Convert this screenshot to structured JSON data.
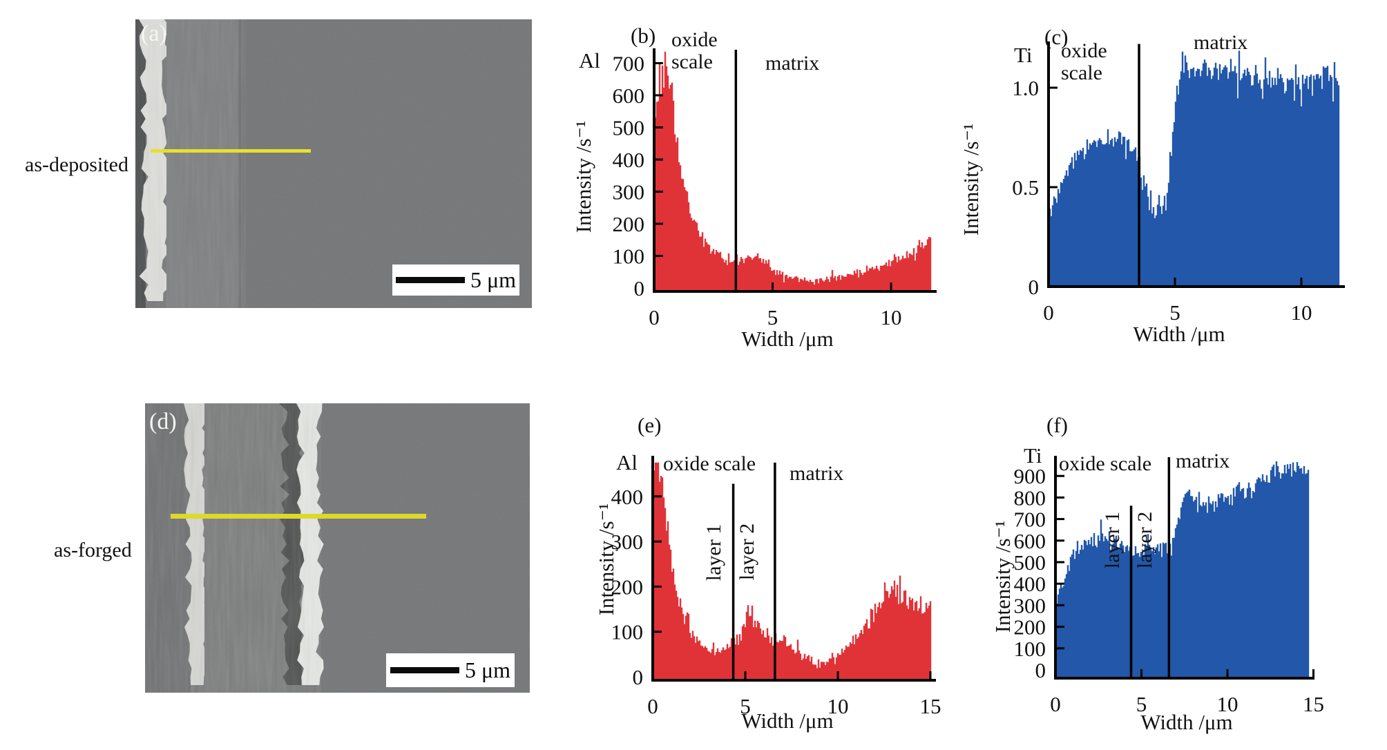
{
  "rows": [
    {
      "label": "as-deposited"
    },
    {
      "label": "as-forged"
    }
  ],
  "sem_panels": [
    {
      "panel_label": "(a)",
      "scale_label": "5 μm"
    },
    {
      "panel_label": "(d)",
      "scale_label": "5 μm"
    }
  ],
  "chart_data": [
    {
      "id": "b",
      "type": "area",
      "panel_label": "(b)",
      "element": "Al",
      "xlabel": "Width /μm",
      "ylabel": "Intensity /s⁻¹",
      "x_ticks": [
        0,
        5,
        10
      ],
      "x_tick_labels": [
        "0",
        "5",
        "10"
      ],
      "y_ticks": [
        0,
        100,
        200,
        300,
        400,
        500,
        600,
        700
      ],
      "y_tick_labels": [
        "0",
        "100",
        "200",
        "300",
        "400",
        "500",
        "600",
        "700"
      ],
      "xlim": [
        0,
        11.7
      ],
      "ylim": [
        0,
        745
      ],
      "grid": false,
      "fill_color": "#e03338",
      "region_labels": {
        "oxide": "oxide\nscale",
        "matrix": "matrix"
      },
      "boundaries": [
        {
          "x": 3.45,
          "top": 745
        }
      ],
      "noise": {
        "abs": 10,
        "rel": 0.12,
        "spike": 0.05,
        "dip": 0.04,
        "seed": 5
      },
      "profile": [
        [
          0,
          480
        ],
        [
          0.2,
          620
        ],
        [
          0.35,
          690
        ],
        [
          0.5,
          705
        ],
        [
          0.65,
          640
        ],
        [
          0.8,
          545
        ],
        [
          0.95,
          460
        ],
        [
          1.1,
          385
        ],
        [
          1.3,
          300
        ],
        [
          1.5,
          245
        ],
        [
          1.75,
          200
        ],
        [
          2.0,
          160
        ],
        [
          2.3,
          130
        ],
        [
          2.6,
          110
        ],
        [
          3.0,
          92
        ],
        [
          3.4,
          82
        ],
        [
          3.7,
          88
        ],
        [
          4.0,
          97
        ],
        [
          4.3,
          100
        ],
        [
          4.6,
          92
        ],
        [
          4.9,
          75
        ],
        [
          5.1,
          52
        ],
        [
          5.4,
          38
        ],
        [
          5.8,
          30
        ],
        [
          6.2,
          24
        ],
        [
          6.7,
          22
        ],
        [
          7.2,
          26
        ],
        [
          7.7,
          32
        ],
        [
          8.2,
          40
        ],
        [
          8.7,
          48
        ],
        [
          9.2,
          58
        ],
        [
          9.7,
          70
        ],
        [
          10.2,
          85
        ],
        [
          10.6,
          100
        ],
        [
          11.0,
          118
        ],
        [
          11.3,
          138
        ],
        [
          11.5,
          150
        ],
        [
          11.7,
          158
        ]
      ]
    },
    {
      "id": "c",
      "type": "area",
      "panel_label": "(c)",
      "element": "Ti",
      "xlabel": "Width /μm",
      "ylabel": "Intensity /s⁻¹",
      "x_ticks": [
        0,
        5,
        10
      ],
      "x_tick_labels": [
        "0",
        "5",
        "10"
      ],
      "y_ticks": [
        0,
        0.5,
        1.0
      ],
      "y_tick_labels": [
        "0",
        "0.5",
        "1.0"
      ],
      "xlim": [
        0,
        11.5
      ],
      "ylim": [
        0,
        1.22
      ],
      "grid": false,
      "fill_color": "#2257aa",
      "region_labels": {
        "oxide": "oxide\nscale",
        "matrix": "matrix"
      },
      "boundaries": [
        {
          "x": 3.58,
          "top": 1.22
        }
      ],
      "noise": {
        "abs": 0.035,
        "rel": 0.03,
        "spike": 0.08,
        "dip": 0.08,
        "seed": 9
      },
      "profile": [
        [
          0,
          0.43
        ],
        [
          0.3,
          0.46
        ],
        [
          0.6,
          0.52
        ],
        [
          0.9,
          0.6
        ],
        [
          1.2,
          0.67
        ],
        [
          1.5,
          0.71
        ],
        [
          1.9,
          0.73
        ],
        [
          2.3,
          0.74
        ],
        [
          2.7,
          0.75
        ],
        [
          3.0,
          0.74
        ],
        [
          3.3,
          0.72
        ],
        [
          3.55,
          0.68
        ],
        [
          3.75,
          0.55
        ],
        [
          3.95,
          0.44
        ],
        [
          4.15,
          0.38
        ],
        [
          4.35,
          0.38
        ],
        [
          4.55,
          0.41
        ],
        [
          4.7,
          0.47
        ],
        [
          4.85,
          0.62
        ],
        [
          5.0,
          0.9
        ],
        [
          5.15,
          1.07
        ],
        [
          5.35,
          1.12
        ],
        [
          5.6,
          1.09
        ],
        [
          6.0,
          1.08
        ],
        [
          6.4,
          1.09
        ],
        [
          6.8,
          1.07
        ],
        [
          7.2,
          1.08
        ],
        [
          7.6,
          1.06
        ],
        [
          8.0,
          1.06
        ],
        [
          8.4,
          1.05
        ],
        [
          8.8,
          1.06
        ],
        [
          9.2,
          1.04
        ],
        [
          9.6,
          1.05
        ],
        [
          10.0,
          1.04
        ],
        [
          10.4,
          1.05
        ],
        [
          10.8,
          1.06
        ],
        [
          11.2,
          1.06
        ],
        [
          11.5,
          1.07
        ]
      ]
    },
    {
      "id": "e",
      "type": "area",
      "panel_label": "(e)",
      "element": "Al",
      "xlabel": "Width /μm",
      "ylabel": "Intensity /s⁻¹",
      "x_ticks": [
        0,
        5,
        10,
        15
      ],
      "x_tick_labels": [
        "0",
        "5",
        "10",
        "15"
      ],
      "y_ticks": [
        0,
        100,
        200,
        300,
        400
      ],
      "y_tick_labels": [
        "0",
        "100",
        "200",
        "300",
        "400"
      ],
      "xlim": [
        0,
        15
      ],
      "ylim": [
        0,
        475
      ],
      "grid": false,
      "fill_color": "#e03338",
      "region_labels": {
        "oxide": "oxide scale",
        "matrix": "matrix",
        "layer1": "layer 1",
        "layer2": "layer 2"
      },
      "boundaries": [
        {
          "x": 4.35,
          "top": 428
        },
        {
          "x": 6.6,
          "top": 475
        }
      ],
      "noise": {
        "abs": 9,
        "rel": 0.12,
        "spike": 0.05,
        "dip": 0.04,
        "seed": 13
      },
      "profile": [
        [
          0,
          430
        ],
        [
          0.15,
          458
        ],
        [
          0.3,
          448
        ],
        [
          0.5,
          405
        ],
        [
          0.7,
          345
        ],
        [
          0.9,
          285
        ],
        [
          1.1,
          230
        ],
        [
          1.35,
          180
        ],
        [
          1.6,
          140
        ],
        [
          1.9,
          110
        ],
        [
          2.2,
          90
        ],
        [
          2.6,
          72
        ],
        [
          3.0,
          63
        ],
        [
          3.4,
          60
        ],
        [
          3.8,
          63
        ],
        [
          4.2,
          72
        ],
        [
          4.5,
          80
        ],
        [
          4.75,
          88
        ],
        [
          4.95,
          118
        ],
        [
          5.1,
          158
        ],
        [
          5.25,
          142
        ],
        [
          5.45,
          118
        ],
        [
          5.7,
          108
        ],
        [
          6.0,
          100
        ],
        [
          6.3,
          90
        ],
        [
          6.6,
          84
        ],
        [
          6.9,
          82
        ],
        [
          7.2,
          72
        ],
        [
          7.6,
          62
        ],
        [
          8.0,
          50
        ],
        [
          8.4,
          38
        ],
        [
          8.8,
          31
        ],
        [
          9.2,
          29
        ],
        [
          9.6,
          34
        ],
        [
          10.0,
          44
        ],
        [
          10.4,
          57
        ],
        [
          10.8,
          74
        ],
        [
          11.2,
          97
        ],
        [
          11.6,
          120
        ],
        [
          12.0,
          145
        ],
        [
          12.4,
          168
        ],
        [
          12.8,
          186
        ],
        [
          13.1,
          193
        ],
        [
          13.4,
          186
        ],
        [
          13.8,
          172
        ],
        [
          14.2,
          158
        ],
        [
          14.6,
          150
        ],
        [
          15.0,
          157
        ]
      ]
    },
    {
      "id": "f",
      "type": "area",
      "panel_label": "(f)",
      "element": "Ti",
      "xlabel": "Width /μm",
      "ylabel": "Intensity /s⁻¹",
      "x_ticks": [
        0,
        5,
        10,
        15
      ],
      "x_tick_labels": [
        "0",
        "5",
        "10",
        "15"
      ],
      "y_ticks": [
        0,
        100,
        200,
        300,
        400,
        500,
        600,
        700,
        800,
        900
      ],
      "y_tick_labels": [
        "0",
        "100",
        "200",
        "300",
        "400",
        "500",
        "600",
        "700",
        "800",
        "900"
      ],
      "xlim": [
        0,
        14.75
      ],
      "ylim": [
        0,
        995
      ],
      "grid": false,
      "fill_color": "#2257aa",
      "region_labels": {
        "oxide": "oxide scale",
        "matrix": "matrix",
        "layer1": "layer 1",
        "layer2": "layer 2"
      },
      "boundaries": [
        {
          "x": 4.4,
          "top": 762
        },
        {
          "x": 6.6,
          "top": 990
        }
      ],
      "noise": {
        "abs": 22,
        "rel": 0.04,
        "spike": 0.07,
        "dip": 0.07,
        "seed": 17
      },
      "profile": [
        [
          0,
          325
        ],
        [
          0.2,
          355
        ],
        [
          0.4,
          395
        ],
        [
          0.6,
          445
        ],
        [
          0.8,
          492
        ],
        [
          1.0,
          528
        ],
        [
          1.3,
          558
        ],
        [
          1.6,
          582
        ],
        [
          2.0,
          605
        ],
        [
          2.4,
          618
        ],
        [
          2.8,
          616
        ],
        [
          3.2,
          607
        ],
        [
          3.6,
          598
        ],
        [
          4.0,
          583
        ],
        [
          4.3,
          570
        ],
        [
          4.6,
          548
        ],
        [
          4.9,
          540
        ],
        [
          5.2,
          552
        ],
        [
          5.5,
          565
        ],
        [
          5.8,
          572
        ],
        [
          6.1,
          566
        ],
        [
          6.4,
          558
        ],
        [
          6.6,
          566
        ],
        [
          6.8,
          592
        ],
        [
          7.0,
          652
        ],
        [
          7.2,
          722
        ],
        [
          7.45,
          772
        ],
        [
          7.7,
          795
        ],
        [
          8.0,
          798
        ],
        [
          8.4,
          783
        ],
        [
          8.8,
          773
        ],
        [
          9.2,
          772
        ],
        [
          9.6,
          784
        ],
        [
          10.0,
          795
        ],
        [
          10.4,
          810
        ],
        [
          10.8,
          830
        ],
        [
          11.2,
          850
        ],
        [
          11.6,
          868
        ],
        [
          12.0,
          888
        ],
        [
          12.4,
          906
        ],
        [
          12.8,
          918
        ],
        [
          13.2,
          926
        ],
        [
          13.6,
          928
        ],
        [
          14.0,
          926
        ],
        [
          14.4,
          936
        ],
        [
          14.75,
          928
        ]
      ]
    }
  ]
}
